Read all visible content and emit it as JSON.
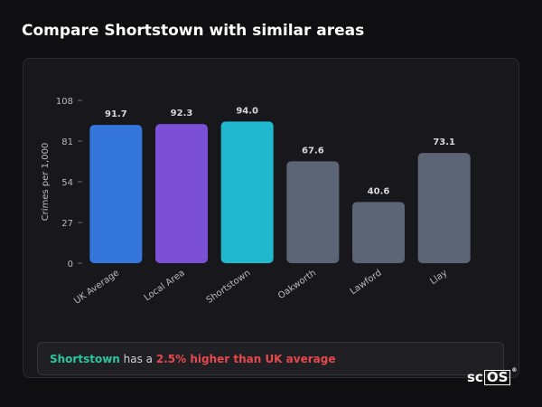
{
  "page": {
    "title": "Compare Shortstown with similar areas"
  },
  "summary": {
    "place": "Shortstown",
    "middle": " has a ",
    "difference": "2.5% higher than UK average"
  },
  "logo": {
    "text_a": "sc",
    "text_b": "OS",
    "mark": "®"
  },
  "chart_data": {
    "type": "bar",
    "categories": [
      "UK Average",
      "Local Area",
      "Shortstown",
      "Oakworth",
      "Lawford",
      "Llay"
    ],
    "values": [
      91.7,
      92.3,
      94.0,
      67.6,
      40.6,
      73.1
    ],
    "value_labels": [
      "91.7",
      "92.3",
      "94.0",
      "67.6",
      "40.6",
      "73.1"
    ],
    "colors": [
      "#3476dc",
      "#7b4fd6",
      "#20b8cf",
      "#5c6575",
      "#5c6575",
      "#5c6575"
    ],
    "ylabel": "Crimes per 1,000",
    "ylim": [
      0,
      108
    ],
    "yticks": [
      0,
      27,
      54,
      81,
      108
    ],
    "grid": false,
    "legend": "none"
  }
}
